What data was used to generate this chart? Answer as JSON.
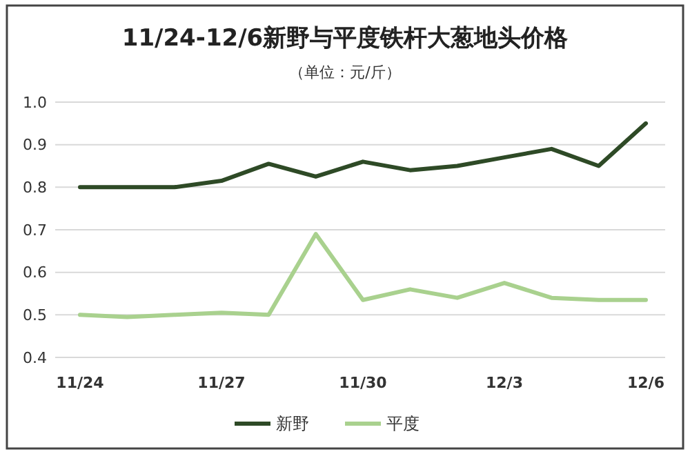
{
  "chart_data": {
    "type": "line",
    "title": "11/24-12/6新野与平度铁杆大葱地头价格",
    "subtitle": "（单位：元/斤）",
    "categories": [
      "11/24",
      null,
      null,
      "11/27",
      null,
      null,
      "11/30",
      null,
      null,
      "12/3",
      null,
      null,
      "12/6"
    ],
    "series": [
      {
        "name": "新野",
        "color": "#2e4a26",
        "values": [
          0.8,
          0.8,
          0.8,
          0.815,
          0.855,
          0.825,
          0.86,
          0.84,
          0.85,
          0.87,
          0.89,
          0.85,
          0.95
        ]
      },
      {
        "name": "平度",
        "color": "#a9d18e",
        "values": [
          0.5,
          0.495,
          0.5,
          0.505,
          0.5,
          0.69,
          0.535,
          0.56,
          0.54,
          0.575,
          0.54,
          0.535,
          0.535
        ]
      }
    ],
    "ylim": [
      0.4,
      1.0
    ],
    "yticks": [
      {
        "value": 0.4,
        "label": "0.4"
      },
      {
        "value": 0.5,
        "label": "0.5"
      },
      {
        "value": 0.6,
        "label": "0.6"
      },
      {
        "value": 0.7,
        "label": "0.7"
      },
      {
        "value": 0.8,
        "label": "0.8"
      },
      {
        "value": 0.9,
        "label": "0.9"
      },
      {
        "value": 1.0,
        "label": "1.0"
      }
    ],
    "grid": "y",
    "legend": "bottom",
    "marker": "none",
    "line_style": "solid"
  }
}
